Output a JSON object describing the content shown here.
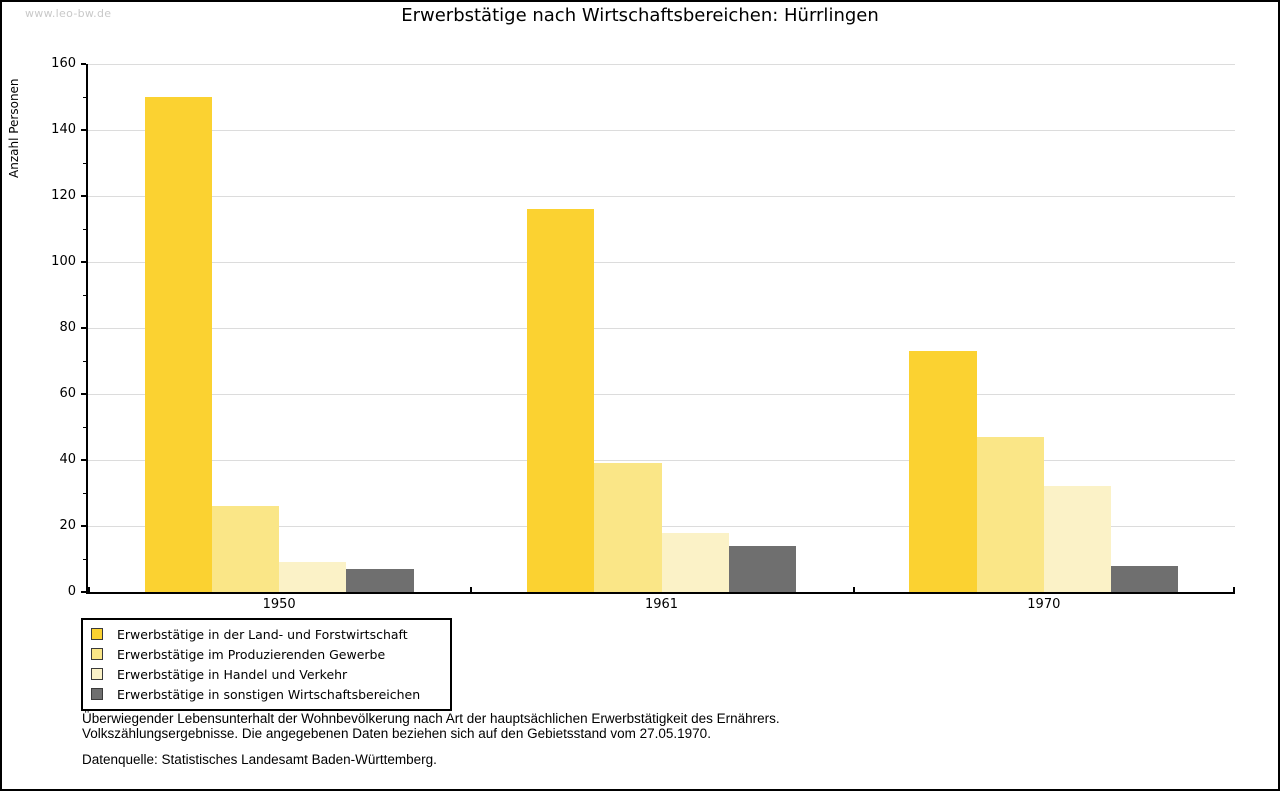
{
  "watermark": "www.leo-bw.de",
  "chart_data": {
    "type": "bar",
    "title": "Erwerbstätige nach Wirtschaftsbereichen: Hürrlingen",
    "ylabel": "Anzahl Personen",
    "xlabel": "",
    "categories": [
      "1950",
      "1961",
      "1970"
    ],
    "series": [
      {
        "name": "Erwerbstätige in der Land- und Forstwirtschaft",
        "color": "#FBD231",
        "values": [
          150,
          116,
          73
        ]
      },
      {
        "name": "Erwerbstätige im Produzierenden Gewerbe",
        "color": "#FAE687",
        "values": [
          26,
          39,
          47
        ]
      },
      {
        "name": "Erwerbstätige in Handel und Verkehr",
        "color": "#FBF2C7",
        "values": [
          9,
          18,
          32
        ]
      },
      {
        "name": "Erwerbstätige in sonstigen Wirtschaftsbereichen",
        "color": "#6F6F6F",
        "values": [
          7,
          14,
          8
        ]
      }
    ],
    "ylim": [
      0,
      160
    ],
    "yticks": [
      0,
      20,
      40,
      60,
      80,
      100,
      120,
      140,
      160
    ],
    "ytick_minor_step": 10,
    "grid": true,
    "legend_position": "bottom-left",
    "colors": {
      "gridline": "#dcdcdc",
      "axis": "#000000",
      "watermark": "#c9c9c9"
    }
  },
  "footnotes": {
    "line1": "Überwiegender Lebensunterhalt der Wohnbevölkerung nach Art der hauptsächlichen Erwerbstätigkeit des Ernährers.",
    "line2": "Volkszählungsergebnisse. Die angegebenen Daten beziehen sich auf den Gebietsstand vom 27.05.1970.",
    "datasource": "Datenquelle: Statistisches Landesamt Baden-Württemberg."
  }
}
